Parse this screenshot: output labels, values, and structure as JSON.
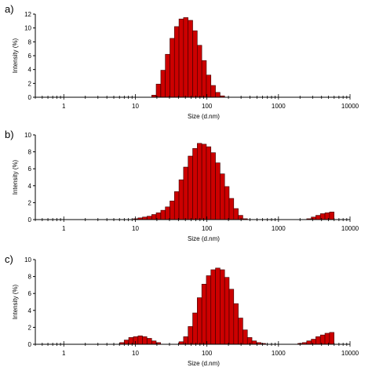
{
  "colors": {
    "bar_fill": "#cc0000",
    "bar_stroke": "#3a0000",
    "axis": "#000000"
  },
  "chart_data": [
    {
      "type": "bar",
      "panel_label": "a)",
      "xlabel": "Size (d.nm)",
      "ylabel": "Intensity (%)",
      "x_scale": "log",
      "xlim": [
        0.4,
        10000
      ],
      "ylim": [
        0,
        12
      ],
      "y_ticks": [
        0,
        2,
        4,
        6,
        8,
        10,
        12
      ],
      "x_ticks": [
        1,
        10,
        100,
        1000,
        10000
      ],
      "x_tick_labels": [
        "1",
        "10",
        "100",
        "1000",
        "10000"
      ],
      "grid": false,
      "x": [
        18.2,
        21.0,
        24.4,
        28.2,
        32.7,
        37.8,
        43.8,
        50.7,
        58.8,
        68.1,
        78.8,
        91.3,
        105.7,
        122.4,
        141.8,
        164.2,
        190.1
      ],
      "values": [
        0.3,
        1.9,
        3.9,
        6.2,
        8.5,
        10.2,
        11.3,
        11.5,
        11.1,
        9.6,
        7.5,
        5.3,
        3.2,
        1.7,
        0.7,
        0.2,
        0.0
      ]
    },
    {
      "type": "bar",
      "panel_label": "b)",
      "xlabel": "Size (d.nm)",
      "ylabel": "Intensity (%)",
      "x_scale": "log",
      "xlim": [
        0.4,
        10000
      ],
      "ylim": [
        0,
        10
      ],
      "y_ticks": [
        0,
        2,
        4,
        6,
        8,
        10
      ],
      "x_ticks": [
        1,
        10,
        100,
        1000,
        10000
      ],
      "x_tick_labels": [
        "1",
        "10",
        "100",
        "1000",
        "10000"
      ],
      "grid": false,
      "x": [
        10.1,
        11.7,
        13.5,
        15.7,
        18.2,
        21.0,
        24.4,
        28.2,
        32.7,
        37.8,
        43.8,
        50.7,
        58.8,
        68.1,
        78.8,
        91.3,
        105.7,
        122.4,
        141.8,
        164.2,
        190.1,
        220.2,
        255.0,
        295.3,
        342.0,
        396.1,
        458.7,
        2669.0,
        3091.0,
        3580.0,
        4145.0,
        4801.0,
        5560.0
      ],
      "values": [
        0.1,
        0.2,
        0.3,
        0.4,
        0.6,
        0.8,
        1.1,
        1.5,
        2.2,
        3.3,
        4.7,
        6.2,
        7.5,
        8.4,
        9.0,
        8.9,
        8.6,
        7.9,
        6.7,
        5.4,
        3.9,
        2.5,
        1.3,
        0.5,
        0.1,
        0.0,
        0.0,
        0.1,
        0.3,
        0.5,
        0.7,
        0.8,
        0.9
      ]
    },
    {
      "type": "bar",
      "panel_label": "c)",
      "xlabel": "Size (d.nm)",
      "ylabel": "Intensity (%)",
      "x_scale": "log",
      "xlim": [
        0.4,
        10000
      ],
      "ylim": [
        0,
        10
      ],
      "y_ticks": [
        0,
        2,
        4,
        6,
        8,
        10
      ],
      "x_ticks": [
        1,
        10,
        100,
        1000,
        10000
      ],
      "x_tick_labels": [
        "1",
        "10",
        "100",
        "1000",
        "10000"
      ],
      "grid": false,
      "x": [
        6.5,
        7.5,
        8.7,
        10.1,
        11.7,
        13.5,
        15.7,
        18.2,
        21.0,
        43.8,
        50.7,
        58.8,
        68.1,
        78.8,
        91.3,
        105.7,
        122.4,
        141.8,
        164.2,
        190.1,
        220.2,
        255.0,
        295.3,
        342.0,
        396.1,
        458.7,
        531.2,
        615.1,
        712.4,
        2000.0,
        2305.0,
        2669.0,
        3091.0,
        3580.0,
        4145.0,
        4801.0,
        5560.0
      ],
      "values": [
        0.2,
        0.5,
        0.8,
        0.9,
        1.0,
        0.9,
        0.7,
        0.4,
        0.2,
        0.3,
        0.9,
        2.1,
        3.7,
        5.5,
        7.1,
        8.1,
        8.8,
        9.0,
        8.8,
        7.9,
        6.5,
        4.8,
        3.1,
        1.7,
        0.8,
        0.4,
        0.2,
        0.1,
        0.0,
        0.1,
        0.2,
        0.4,
        0.6,
        0.9,
        1.1,
        1.3,
        1.4
      ]
    }
  ]
}
